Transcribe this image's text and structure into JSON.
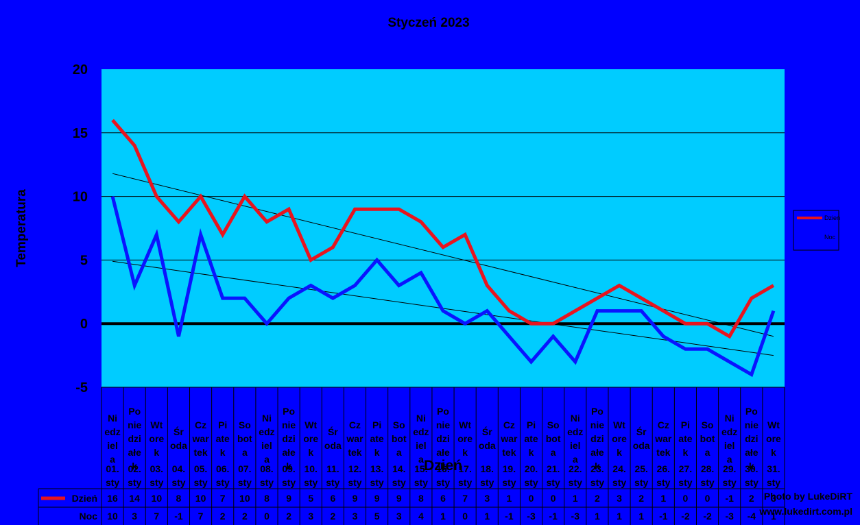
{
  "chart_data": {
    "type": "line",
    "title": "Styczeń 2023",
    "xlabel": "Dzień",
    "ylabel": "Temperatura",
    "ylim": [
      -5,
      20
    ],
    "yticks": [
      "20",
      "15",
      "10",
      "5",
      "0",
      "-5"
    ],
    "grid": true,
    "legend_position": "right",
    "day_names": [
      "Niedziela",
      "Poniedziałek",
      "Wtorek",
      "Środa",
      "Czwartek",
      "Piatek",
      "Sobota",
      "Niedziela",
      "Poniedziałek",
      "Wtorek",
      "Środa",
      "Czwartek",
      "Piatek",
      "Sobota",
      "Niedziela",
      "Poniedziałek",
      "Wtorek",
      "Środa",
      "Czwartek",
      "Piatek",
      "Sobota",
      "Niedziela",
      "Poniedziałek",
      "Wtorek",
      "Środa",
      "Czwartek",
      "Piatek",
      "Sobota",
      "Niedziela",
      "Poniedziałek",
      "Wtorek"
    ],
    "categories": [
      "01. sty",
      "02. sty",
      "03. sty",
      "04. sty",
      "05. sty",
      "06. sty",
      "07. sty",
      "08. sty",
      "09. sty",
      "10. sty",
      "11. sty",
      "12. sty",
      "13. sty",
      "14. sty",
      "15. sty",
      "16. sty",
      "17. sty",
      "18. sty",
      "19. sty",
      "20. sty",
      "21. sty",
      "22. sty",
      "23. sty",
      "24. sty",
      "25. sty",
      "26. sty",
      "27. sty",
      "28. sty",
      "29. sty",
      "30. sty",
      "31. sty"
    ],
    "series": [
      {
        "name": "Dzień",
        "color": "#e8141e",
        "values": [
          16,
          14,
          10,
          8,
          10,
          7,
          10,
          8,
          9,
          5,
          6,
          9,
          9,
          9,
          8,
          6,
          7,
          3,
          1,
          0,
          0,
          1,
          2,
          3,
          2,
          1,
          0,
          0,
          -1,
          2,
          3
        ]
      },
      {
        "name": "Noc",
        "color": "#0a14ff",
        "values": [
          10,
          3,
          7,
          -1,
          7,
          2,
          2,
          0,
          2,
          3,
          2,
          3,
          5,
          3,
          4,
          1,
          0,
          1,
          -1,
          -3,
          -1,
          -3,
          1,
          1,
          1,
          -1,
          -2,
          -2,
          -3,
          -4,
          1
        ]
      }
    ],
    "trendlines": [
      {
        "series": "Dzień",
        "start": 11.8,
        "end": -1.0
      },
      {
        "series": "Noc",
        "start": 4.9,
        "end": -2.5
      }
    ]
  },
  "credit": {
    "line1": "Photo by LukeDiRT",
    "line2": "www.lukedirt.com.pl"
  }
}
